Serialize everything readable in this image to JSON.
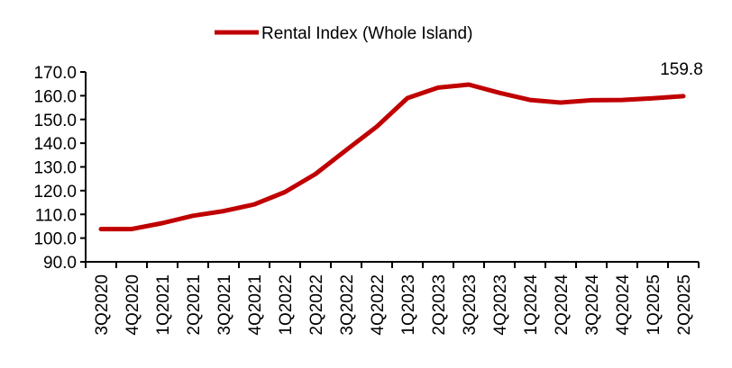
{
  "chart_data": {
    "type": "line",
    "title": "",
    "xlabel": "",
    "ylabel": "",
    "ylim": [
      90,
      170
    ],
    "yticks": [
      90.0,
      100.0,
      110.0,
      120.0,
      130.0,
      140.0,
      150.0,
      160.0,
      170.0
    ],
    "ytick_labels": [
      "90.0",
      "100.0",
      "110.0",
      "120.0",
      "130.0",
      "140.0",
      "150.0",
      "160.0",
      "170.0"
    ],
    "grid": false,
    "legend_position": "top-center",
    "categories": [
      "3Q2020",
      "4Q2020",
      "1Q2021",
      "2Q2021",
      "3Q2021",
      "4Q2021",
      "1Q2022",
      "2Q2022",
      "3Q2022",
      "4Q2022",
      "1Q2023",
      "2Q2023",
      "3Q2023",
      "4Q2023",
      "1Q2024",
      "2Q2024",
      "3Q2024",
      "4Q2024",
      "1Q2025",
      "2Q2025"
    ],
    "series": [
      {
        "name": "Rental Index (Whole Island)",
        "color": "#C00000",
        "values": [
          103.8,
          103.8,
          106.3,
          109.4,
          111.4,
          114.2,
          119.4,
          127.0,
          137.1,
          147.0,
          159.0,
          163.4,
          164.7,
          161.2,
          158.2,
          157.1,
          158.1,
          158.2,
          158.9,
          159.8
        ]
      }
    ],
    "annotations": [
      {
        "category": "2Q2025",
        "text": "159.8"
      }
    ]
  }
}
